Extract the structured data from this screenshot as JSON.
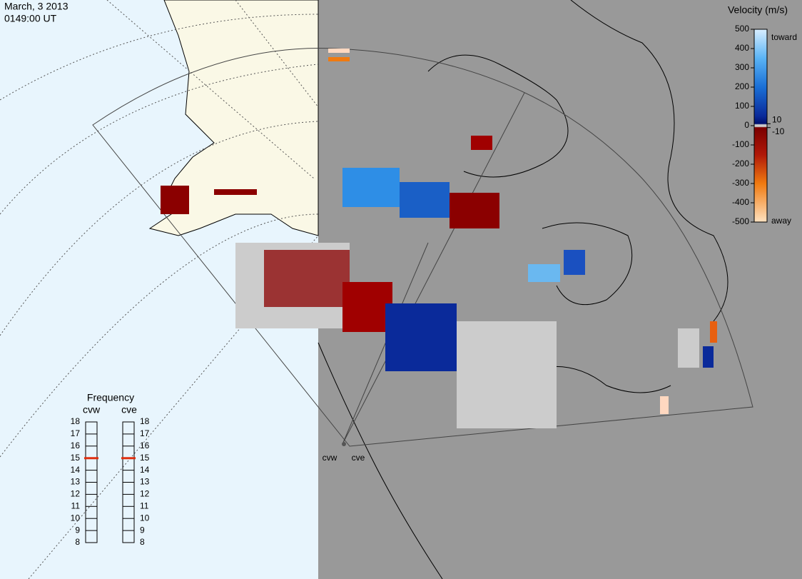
{
  "header": {
    "date": "March, 3 2013",
    "time": "0149:00 UT"
  },
  "velocity_scale": {
    "title": "Velocity (m/s)",
    "ticks": [
      500,
      400,
      300,
      200,
      100,
      0,
      -100,
      -200,
      -300,
      -400,
      -500
    ],
    "near_zero_ticks": [
      10,
      -10
    ],
    "top_label": "toward",
    "bottom_label": "away"
  },
  "frequency": {
    "title": "Frequency",
    "ticks": [
      18,
      17,
      16,
      15,
      14,
      13,
      12,
      11,
      10,
      9,
      8
    ],
    "radars": [
      {
        "name": "cvw",
        "frequency": 15
      },
      {
        "name": "cve",
        "frequency": 15
      }
    ]
  },
  "radar_sites": [
    "cvw",
    "cve"
  ]
}
